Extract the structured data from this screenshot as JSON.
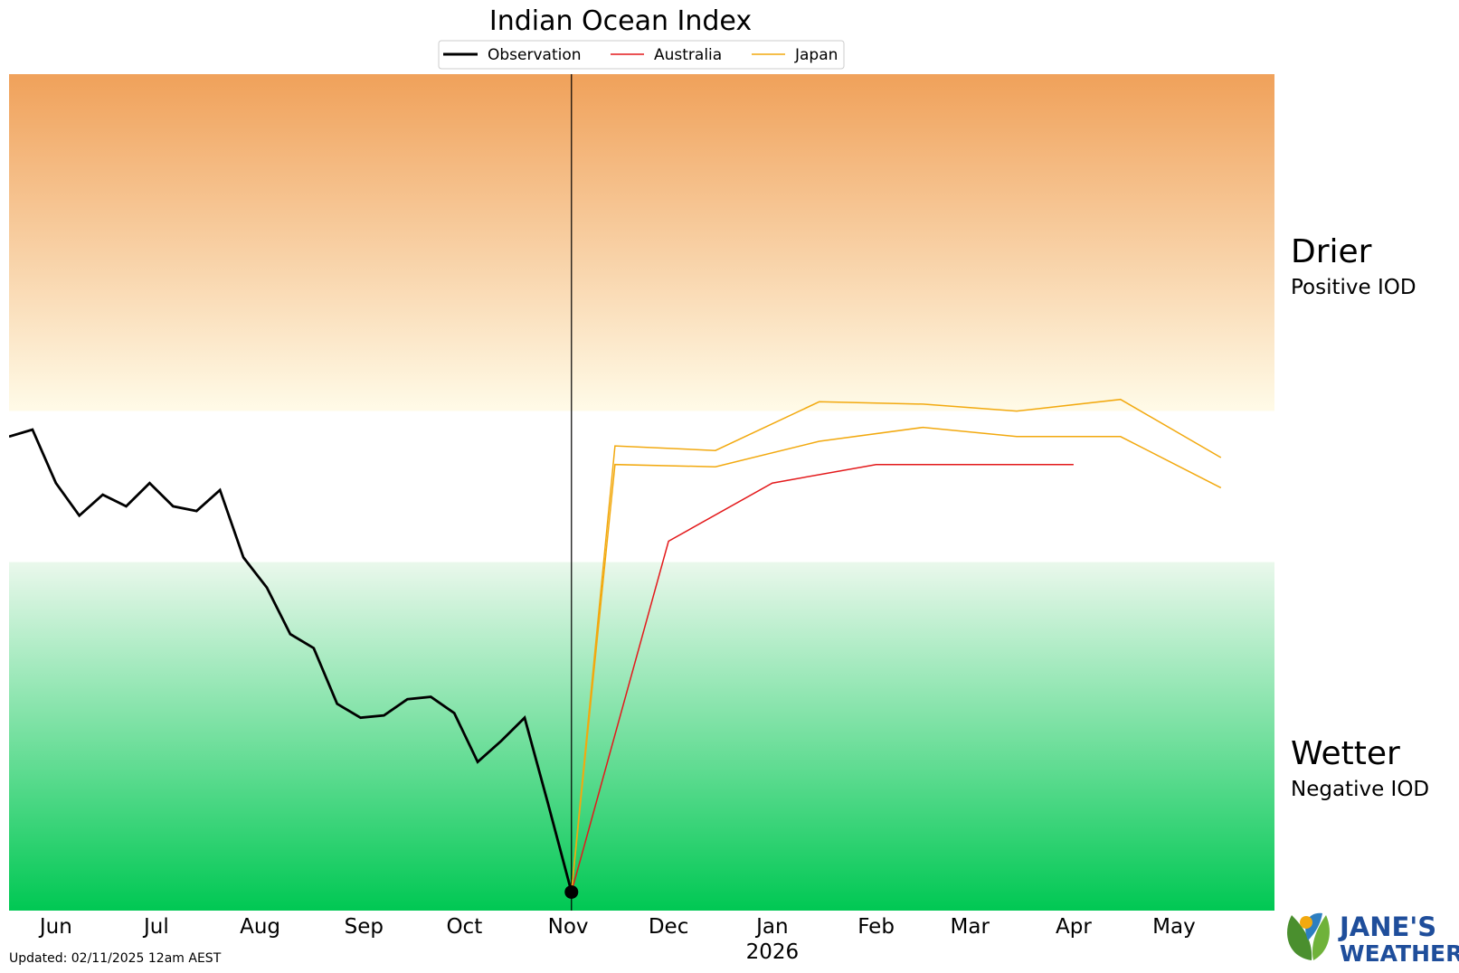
{
  "chart_data": {
    "type": "line",
    "title": "Indian Ocean Index",
    "xlabel": "",
    "ylabel": "",
    "ylim": [
      -2.4,
      1.2
    ],
    "xlim": [
      "2025-05-18",
      "2026-05-31"
    ],
    "grid": false,
    "legend_position": "top-center",
    "legend": [
      "Observation",
      "Australia",
      "Japan"
    ],
    "x_ticks": [
      "Jun",
      "Jul",
      "Aug",
      "Sep",
      "Oct",
      "Nov",
      "Dec",
      "Jan",
      "Feb",
      "Mar",
      "Apr",
      "May"
    ],
    "x_tick_dates": [
      "2025-06-01",
      "2025-07-01",
      "2025-08-01",
      "2025-09-01",
      "2025-10-01",
      "2025-11-01",
      "2025-12-01",
      "2026-01-01",
      "2026-02-01",
      "2026-03-01",
      "2026-04-01",
      "2026-05-01"
    ],
    "x_year_label": "2026",
    "today": "2025-11-02",
    "bands": {
      "positive_threshold": -0.25,
      "negative_threshold": -0.9,
      "drier_color": "#f0a15a",
      "wetter_color": "#00c853"
    },
    "series": [
      {
        "name": "Observation",
        "color": "#000000",
        "x": [
          "2025-05-18",
          "2025-05-25",
          "2025-06-01",
          "2025-06-08",
          "2025-06-15",
          "2025-06-22",
          "2025-06-29",
          "2025-07-06",
          "2025-07-13",
          "2025-07-20",
          "2025-07-27",
          "2025-08-03",
          "2025-08-10",
          "2025-08-17",
          "2025-08-24",
          "2025-08-31",
          "2025-09-07",
          "2025-09-14",
          "2025-09-21",
          "2025-09-28",
          "2025-10-05",
          "2025-10-12",
          "2025-10-19",
          "2025-10-26",
          "2025-11-02"
        ],
        "y": [
          -0.36,
          -0.33,
          -0.56,
          -0.7,
          -0.61,
          -0.66,
          -0.56,
          -0.66,
          -0.68,
          -0.59,
          -0.88,
          -1.01,
          -1.21,
          -1.27,
          -1.51,
          -1.57,
          -1.56,
          -1.49,
          -1.48,
          -1.55,
          -1.76,
          -1.67,
          -1.57,
          -1.94,
          -2.32
        ]
      },
      {
        "name": "Australia",
        "color": "#e3191b",
        "x": [
          "2025-11-02",
          "2025-12-01",
          "2026-01-01",
          "2026-02-01",
          "2026-03-01",
          "2026-04-01"
        ],
        "y": [
          -2.32,
          -0.81,
          -0.56,
          -0.48,
          -0.48,
          -0.48
        ]
      },
      {
        "name": "Japan",
        "color": "#f2a90f",
        "x": [
          "2025-11-15",
          "2025-12-15",
          "2026-01-15",
          "2026-02-15",
          "2026-03-15",
          "2026-04-15",
          "2026-05-15"
        ],
        "y": [
          -0.4,
          -0.42,
          -0.21,
          -0.22,
          -0.25,
          -0.2,
          -0.45
        ],
        "start": -2.32
      },
      {
        "name": "Japan",
        "color": "#f2a90f",
        "x": [
          "2025-11-15",
          "2025-12-15",
          "2026-01-15",
          "2026-02-15",
          "2026-03-15",
          "2026-04-15",
          "2026-05-15"
        ],
        "y": [
          -0.48,
          -0.49,
          -0.38,
          -0.32,
          -0.36,
          -0.36,
          -0.58
        ],
        "start": -2.32
      }
    ],
    "annotations": [
      {
        "title": "Drier",
        "subtitle": "Positive IOD"
      },
      {
        "title": "Wetter",
        "subtitle": "Negative IOD"
      }
    ]
  },
  "footer": {
    "updated": "Updated: 02/11/2025 12am AEST",
    "logo_line1": "JANE'S",
    "logo_line2": "WEATHER"
  }
}
